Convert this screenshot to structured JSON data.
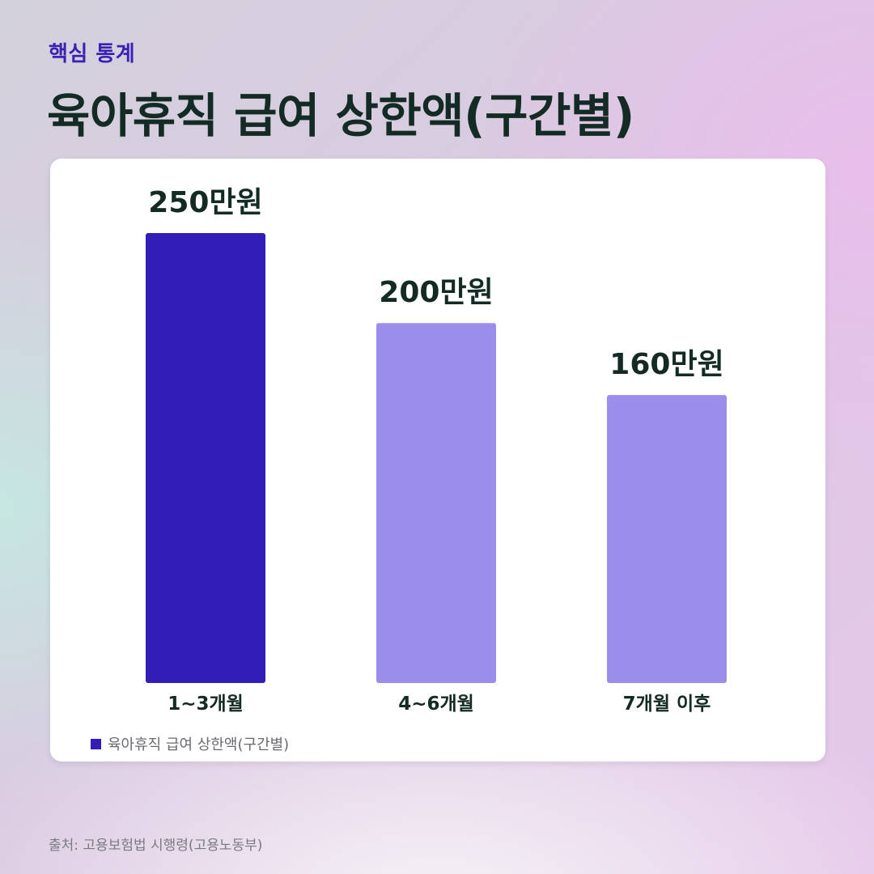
{
  "header": {
    "eyebrow": "핵심 통계",
    "title": "육아휴직 급여 상한액(구간별)"
  },
  "chart_data": {
    "type": "bar",
    "categories": [
      "1~3개월",
      "4~6개월",
      "7개월 이후"
    ],
    "series": [
      {
        "name": "육아휴직 급여 상한액(구간별)",
        "values": [
          250,
          200,
          160
        ]
      }
    ],
    "value_labels": [
      "250만원",
      "200만원",
      "160만원"
    ],
    "unit": "만원",
    "ylim": [
      0,
      250
    ],
    "bar_colors": [
      "#331db8",
      "#9b8dec",
      "#9b8dec"
    ],
    "legend_color": "#331db8",
    "grid": false,
    "legend_position": "bottom-left"
  },
  "source": "출처: 고용보험법 시행령(고용노동부)"
}
